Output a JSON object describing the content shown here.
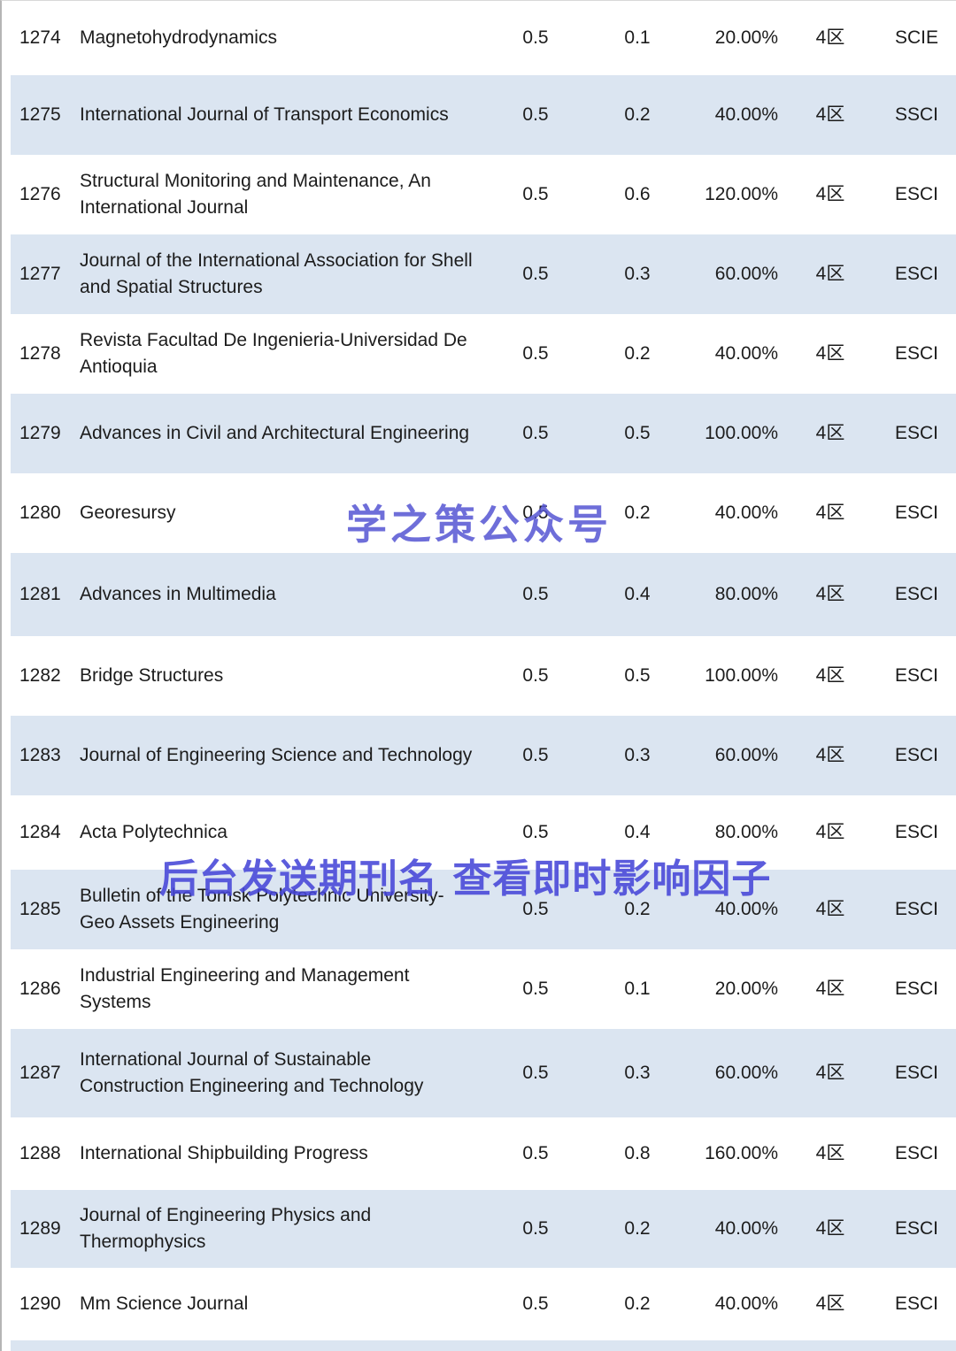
{
  "table": {
    "rows": [
      {
        "rank": "1274",
        "name": "Magnetohydrodynamics",
        "value1": "0.5",
        "value2": "0.1",
        "percent": "20.00%",
        "zone": "4区",
        "index_type": "SCIE"
      },
      {
        "rank": "1275",
        "name": "International Journal of Transport Economics",
        "value1": "0.5",
        "value2": "0.2",
        "percent": "40.00%",
        "zone": "4区",
        "index_type": "SSCI"
      },
      {
        "rank": "1276",
        "name": "Structural Monitoring and Maintenance, An International Journal",
        "value1": "0.5",
        "value2": "0.6",
        "percent": "120.00%",
        "zone": "4区",
        "index_type": "ESCI"
      },
      {
        "rank": "1277",
        "name": "Journal of the International Association for Shell and Spatial Structures",
        "value1": "0.5",
        "value2": "0.3",
        "percent": "60.00%",
        "zone": "4区",
        "index_type": "ESCI"
      },
      {
        "rank": "1278",
        "name": "Revista Facultad De Ingenieria-Universidad De Antioquia",
        "value1": "0.5",
        "value2": "0.2",
        "percent": "40.00%",
        "zone": "4区",
        "index_type": "ESCI"
      },
      {
        "rank": "1279",
        "name": "Advances in Civil and Architectural Engineering",
        "value1": "0.5",
        "value2": "0.5",
        "percent": "100.00%",
        "zone": "4区",
        "index_type": "ESCI"
      },
      {
        "rank": "1280",
        "name": "Georesursy",
        "value1": "0.5",
        "value2": "0.2",
        "percent": "40.00%",
        "zone": "4区",
        "index_type": "ESCI"
      },
      {
        "rank": "1281",
        "name": "Advances in Multimedia",
        "value1": "0.5",
        "value2": "0.4",
        "percent": "80.00%",
        "zone": "4区",
        "index_type": "ESCI"
      },
      {
        "rank": "1282",
        "name": "Bridge Structures",
        "value1": "0.5",
        "value2": "0.5",
        "percent": "100.00%",
        "zone": "4区",
        "index_type": "ESCI"
      },
      {
        "rank": "1283",
        "name": "Journal of Engineering Science and Technology",
        "value1": "0.5",
        "value2": "0.3",
        "percent": "60.00%",
        "zone": "4区",
        "index_type": "ESCI"
      },
      {
        "rank": "1284",
        "name": "Acta Polytechnica",
        "value1": "0.5",
        "value2": "0.4",
        "percent": "80.00%",
        "zone": "4区",
        "index_type": "ESCI"
      },
      {
        "rank": "1285",
        "name": "Bulletin of the Tomsk Polytechnic University-Geo Assets Engineering",
        "value1": "0.5",
        "value2": "0.2",
        "percent": "40.00%",
        "zone": "4区",
        "index_type": "ESCI"
      },
      {
        "rank": "1286",
        "name": "Industrial Engineering and Management Systems",
        "value1": "0.5",
        "value2": "0.1",
        "percent": "20.00%",
        "zone": "4区",
        "index_type": "ESCI"
      },
      {
        "rank": "1287",
        "name": "International Journal of Sustainable Construction Engineering and Technology",
        "value1": "0.5",
        "value2": "0.3",
        "percent": "60.00%",
        "zone": "4区",
        "index_type": "ESCI"
      },
      {
        "rank": "1288",
        "name": "International Shipbuilding Progress",
        "value1": "0.5",
        "value2": "0.8",
        "percent": "160.00%",
        "zone": "4区",
        "index_type": "ESCI"
      },
      {
        "rank": "1289",
        "name": "Journal of Engineering Physics and Thermophysics",
        "value1": "0.5",
        "value2": "0.2",
        "percent": "40.00%",
        "zone": "4区",
        "index_type": "ESCI"
      },
      {
        "rank": "1290",
        "name": "Mm Science Journal",
        "value1": "0.5",
        "value2": "0.2",
        "percent": "40.00%",
        "zone": "4区",
        "index_type": "ESCI"
      }
    ]
  },
  "watermarks": {
    "center": "学之策公众号",
    "banner": "后台发送期刊名 查看即时影响因子"
  },
  "colors": {
    "row_alt": "#dbe5f1",
    "watermark": "#5555d2",
    "text": "#1c1c1c"
  }
}
